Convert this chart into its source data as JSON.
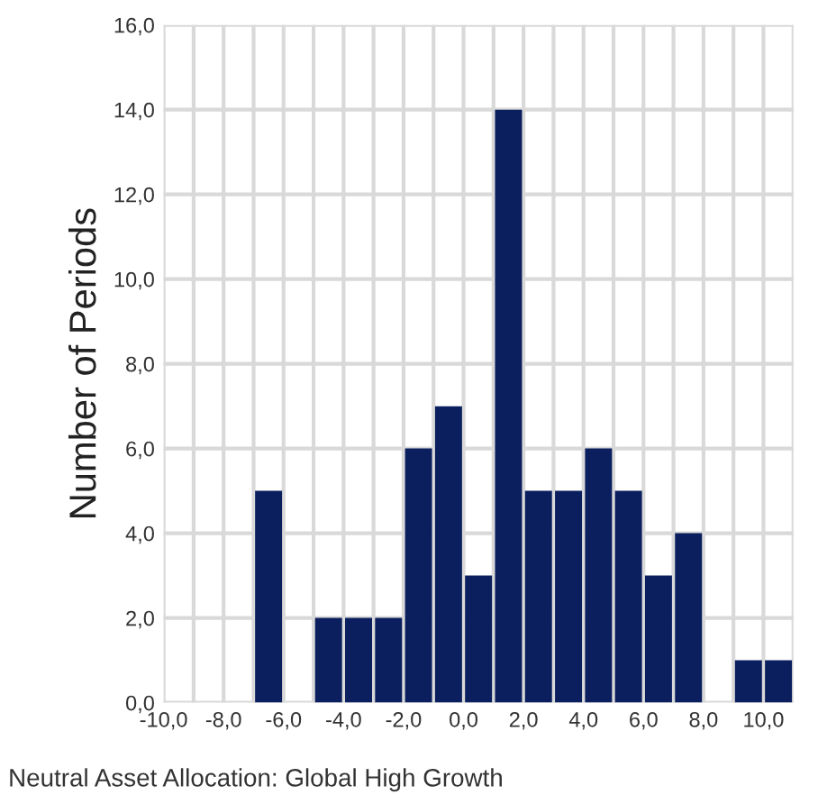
{
  "chart_data": {
    "type": "histogram",
    "ylabel": "Number of Periods",
    "annotations": [
      "Neutral Asset Allocation: Global High Growth"
    ],
    "bins": [
      -9,
      -8,
      -7,
      -6,
      -5,
      -4,
      -3,
      -2,
      -1,
      0,
      1,
      2,
      3,
      4,
      5,
      6,
      7,
      8,
      9,
      10,
      11
    ],
    "values": [
      0,
      0,
      5,
      0,
      2,
      2,
      2,
      6,
      7,
      3,
      14,
      5,
      5,
      6,
      5,
      3,
      4,
      0,
      1,
      1
    ],
    "color": "#0b1f5e",
    "xlim": [
      -10,
      11
    ],
    "xticks": [
      {
        "value": -10,
        "label": "-10,0"
      },
      {
        "value": -8,
        "label": "-8,0"
      },
      {
        "value": -6,
        "label": "-6,0"
      },
      {
        "value": -4,
        "label": "-4,0"
      },
      {
        "value": -2,
        "label": "-2,0"
      },
      {
        "value": 0,
        "label": "0,0"
      },
      {
        "value": 2,
        "label": "2,0"
      },
      {
        "value": 4,
        "label": "4,0"
      },
      {
        "value": 6,
        "label": "6,0"
      },
      {
        "value": 8,
        "label": "8,0"
      },
      {
        "value": 10,
        "label": "10,0"
      }
    ],
    "ylim": [
      0,
      16
    ],
    "yticks": [
      {
        "value": 0,
        "label": "0,0"
      },
      {
        "value": 2,
        "label": "2,0"
      },
      {
        "value": 4,
        "label": "4,0"
      },
      {
        "value": 6,
        "label": "6,0"
      },
      {
        "value": 8,
        "label": "8,0"
      },
      {
        "value": 10,
        "label": "10,0"
      },
      {
        "value": 12,
        "label": "12,0"
      },
      {
        "value": 14,
        "label": "14,0"
      },
      {
        "value": 16,
        "label": "16,0"
      }
    ],
    "grid": true
  }
}
